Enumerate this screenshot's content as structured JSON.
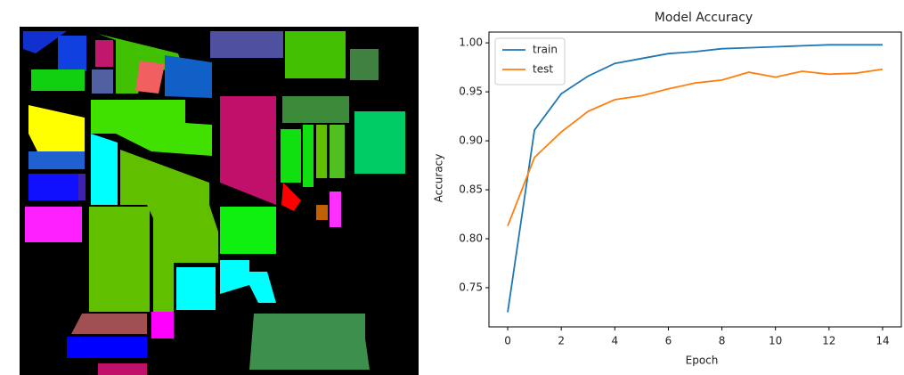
{
  "chart_data": {
    "type": "line",
    "title": "Model Accuracy",
    "x_label": "Epoch",
    "y_label": "Accuracy",
    "x": [
      0,
      1,
      2,
      3,
      4,
      5,
      6,
      7,
      8,
      9,
      10,
      11,
      12,
      13,
      14
    ],
    "series": [
      {
        "name": "train",
        "color": "#1f77b4",
        "values": [
          0.725,
          0.911,
          0.948,
          0.966,
          0.979,
          0.984,
          0.989,
          0.991,
          0.994,
          0.995,
          0.996,
          0.997,
          0.998,
          0.998,
          0.998
        ]
      },
      {
        "name": "test",
        "color": "#ff7f0e",
        "values": [
          0.813,
          0.883,
          0.909,
          0.93,
          0.942,
          0.946,
          0.953,
          0.959,
          0.962,
          0.97,
          0.965,
          0.971,
          0.968,
          0.969,
          0.973
        ]
      }
    ],
    "xlim": [
      -0.7,
      14.7
    ],
    "ylim": [
      0.71,
      1.011
    ],
    "xticks": [
      0,
      2,
      4,
      6,
      8,
      10,
      12,
      14
    ],
    "yticks": [
      0.75,
      {
        "value": 0.8,
        "label": "0.80"
      },
      0.85,
      {
        "value": 0.9,
        "label": "0.90"
      },
      0.95,
      {
        "value": 1,
        "label": "1.00"
      }
    ],
    "legend": "upper left",
    "grid": false
  }
}
